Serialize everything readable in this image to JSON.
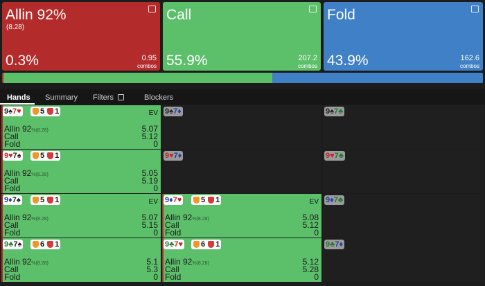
{
  "actions": [
    {
      "name": "Allin 92%",
      "subtitle": "(8.28)",
      "color": "#b32b2b",
      "value": 0.3,
      "value_label": "0.3%",
      "combos": "0.95",
      "combos_label": "combos"
    },
    {
      "name": "Call",
      "color": "#5cbf6a",
      "value": 55.9,
      "value_label": "55.9%",
      "combos": "207.2",
      "combos_label": "combos"
    },
    {
      "name": "Fold",
      "color": "#3f80c6",
      "value": 43.9,
      "value_label": "43.9%",
      "combos": "162.6",
      "combos_label": "combos"
    }
  ],
  "tabs": [
    "Hands",
    "Summary",
    "Filters",
    "Blockers"
  ],
  "grid": {
    "rows": [
      [
        {
          "cards": [
            {
              "rank": "9",
              "suit": "♠",
              "color": "#222222"
            },
            {
              "rank": "7",
              "suit": "♥",
              "color": "#c62828"
            }
          ],
          "badges": [
            "5",
            "1"
          ],
          "ev_label": "EV",
          "lines": [
            {
              "label": "Allin 92",
              "note": "%(8.28)",
              "value": "5.07"
            },
            {
              "label": "Call",
              "value": "5.12"
            },
            {
              "label": "Fold",
              "value": "0"
            }
          ]
        },
        {
          "cards": [
            {
              "rank": "9",
              "suit": "♠",
              "color": "#222222"
            },
            {
              "rank": "7",
              "suit": "♦",
              "color": "#1e3fa8"
            }
          ]
        },
        {
          "cards": [
            {
              "rank": "9",
              "suit": "♠",
              "color": "#222222"
            },
            {
              "rank": "7",
              "suit": "♣",
              "color": "#1e7a2e"
            }
          ]
        }
      ],
      [
        {
          "cards": [
            {
              "rank": "9",
              "suit": "♥",
              "color": "#c62828"
            },
            {
              "rank": "7",
              "suit": "♠",
              "color": "#222222"
            }
          ],
          "badges": [
            "5",
            "1"
          ],
          "lines": [
            {
              "label": "Allin 92",
              "note": "%(8.28)",
              "value": "5.05"
            },
            {
              "label": "Call",
              "value": "5.19"
            },
            {
              "label": "Fold",
              "value": "0"
            }
          ]
        },
        {
          "cards": [
            {
              "rank": "9",
              "suit": "♥",
              "color": "#c62828"
            },
            {
              "rank": "7",
              "suit": "♦",
              "color": "#1e3fa8"
            }
          ]
        },
        {
          "cards": [
            {
              "rank": "9",
              "suit": "♥",
              "color": "#c62828"
            },
            {
              "rank": "7",
              "suit": "♣",
              "color": "#1e7a2e"
            }
          ]
        }
      ],
      [
        {
          "cards": [
            {
              "rank": "9",
              "suit": "♦",
              "color": "#1e3fa8"
            },
            {
              "rank": "7",
              "suit": "♠",
              "color": "#222222"
            }
          ],
          "badges": [
            "5",
            "1"
          ],
          "ev_label": "EV",
          "lines": [
            {
              "label": "Allin 92",
              "note": "%(8.28)",
              "value": "5.07"
            },
            {
              "label": "Call",
              "value": "5.15"
            },
            {
              "label": "Fold",
              "value": "0"
            }
          ]
        },
        {
          "cards": [
            {
              "rank": "9",
              "suit": "♦",
              "color": "#1e3fa8"
            },
            {
              "rank": "7",
              "suit": "♥",
              "color": "#c62828"
            }
          ],
          "badges": [
            "5",
            "1"
          ],
          "ev_label": "EV",
          "lines": [
            {
              "label": "Allin 92",
              "note": "%(8.28)",
              "value": "5.08"
            },
            {
              "label": "Call",
              "value": "5.12"
            },
            {
              "label": "Fold",
              "value": "0"
            }
          ]
        },
        {
          "cards": [
            {
              "rank": "9",
              "suit": "♦",
              "color": "#1e3fa8"
            },
            {
              "rank": "7",
              "suit": "♣",
              "color": "#1e7a2e"
            }
          ]
        }
      ],
      [
        {
          "cards": [
            {
              "rank": "9",
              "suit": "♣",
              "color": "#1e7a2e"
            },
            {
              "rank": "7",
              "suit": "♠",
              "color": "#222222"
            }
          ],
          "badges": [
            "6",
            "1"
          ],
          "lines": [
            {
              "label": "Allin 92",
              "note": "%(8.28)",
              "value": "5.1"
            },
            {
              "label": "Call",
              "value": "5.3"
            },
            {
              "label": "Fold",
              "value": "0"
            }
          ]
        },
        {
          "cards": [
            {
              "rank": "9",
              "suit": "♣",
              "color": "#1e7a2e"
            },
            {
              "rank": "7",
              "suit": "♥",
              "color": "#c62828"
            }
          ],
          "badges": [
            "6",
            "1"
          ],
          "lines": [
            {
              "label": "Allin 92",
              "note": "%(8.28)",
              "value": "5.12"
            },
            {
              "label": "Call",
              "value": "5.28"
            },
            {
              "label": "Fold",
              "value": "0"
            }
          ]
        },
        {
          "cards": [
            {
              "rank": "9",
              "suit": "♣",
              "color": "#1e7a2e"
            },
            {
              "rank": "7",
              "suit": "♦",
              "color": "#1e3fa8"
            }
          ]
        }
      ]
    ]
  }
}
